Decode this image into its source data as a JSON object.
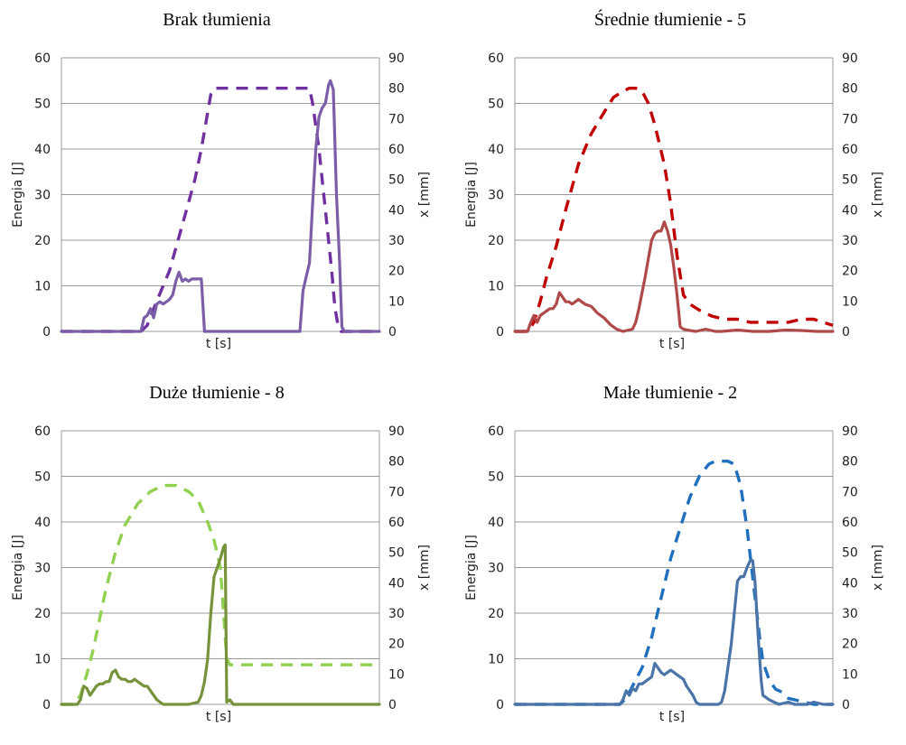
{
  "chart_data": [
    {
      "type": "line",
      "title": "Brak tłumienia",
      "xlabel": "t [s]",
      "ylabel": "Energia [J]",
      "y2label": "x [mm]",
      "ylim": [
        0,
        60
      ],
      "y2lim": [
        0,
        90
      ],
      "yticks": [
        "0",
        "10",
        "20",
        "30",
        "40",
        "50",
        "60"
      ],
      "y2ticks": [
        "0",
        "10",
        "20",
        "30",
        "40",
        "50",
        "60",
        "70",
        "80",
        "90"
      ],
      "xlim": [
        0,
        100
      ],
      "solid_color": "#7b5ea7",
      "dash_color": "#7030a0",
      "energy": [
        [
          0,
          0
        ],
        [
          25,
          0
        ],
        [
          26,
          3
        ],
        [
          27,
          3.5
        ],
        [
          28,
          5
        ],
        [
          29,
          3
        ],
        [
          30,
          6
        ],
        [
          31,
          6.5
        ],
        [
          32,
          6
        ],
        [
          33,
          6.5
        ],
        [
          34,
          7
        ],
        [
          35,
          8
        ],
        [
          36,
          11
        ],
        [
          37,
          13
        ],
        [
          38,
          11
        ],
        [
          39,
          11.5
        ],
        [
          40,
          11
        ],
        [
          41,
          11.5
        ],
        [
          42,
          11.5
        ],
        [
          43,
          11.5
        ],
        [
          44,
          11.5
        ],
        [
          45,
          0
        ],
        [
          50,
          0
        ],
        [
          60,
          0
        ],
        [
          75,
          0
        ],
        [
          76,
          9
        ],
        [
          77,
          12
        ],
        [
          78,
          15
        ],
        [
          79,
          28
        ],
        [
          80,
          40
        ],
        [
          81,
          47
        ],
        [
          82,
          49
        ],
        [
          83,
          50
        ],
        [
          84,
          54
        ],
        [
          84.6,
          55
        ],
        [
          85.5,
          53
        ],
        [
          86.5,
          30
        ],
        [
          87.5,
          15
        ],
        [
          88.2,
          1
        ],
        [
          89,
          0
        ],
        [
          100,
          0
        ]
      ],
      "position": [
        [
          0,
          0
        ],
        [
          25,
          0
        ],
        [
          26,
          1
        ],
        [
          27,
          2
        ],
        [
          28,
          5
        ],
        [
          30,
          10
        ],
        [
          34,
          20
        ],
        [
          38,
          35
        ],
        [
          42,
          50
        ],
        [
          44,
          60
        ],
        [
          46,
          72
        ],
        [
          47,
          78
        ],
        [
          48,
          80
        ],
        [
          58,
          80
        ],
        [
          78,
          80
        ],
        [
          79,
          75
        ],
        [
          81,
          60
        ],
        [
          83,
          40
        ],
        [
          85,
          20
        ],
        [
          86,
          8
        ],
        [
          87,
          2
        ],
        [
          88,
          0
        ],
        [
          100,
          0
        ]
      ]
    },
    {
      "type": "line",
      "title": "Średnie tłumienie - 5",
      "xlabel": "t [s]",
      "ylabel": "Energia [J]",
      "y2label": "x [mm]",
      "ylim": [
        0,
        60
      ],
      "y2lim": [
        0,
        90
      ],
      "yticks": [
        "0",
        "10",
        "20",
        "30",
        "40",
        "50",
        "60"
      ],
      "y2ticks": [
        "0",
        "10",
        "20",
        "30",
        "40",
        "50",
        "60",
        "70",
        "80",
        "90"
      ],
      "xlim": [
        0,
        100
      ],
      "solid_color": "#b04a4a",
      "dash_color": "#c00000",
      "energy": [
        [
          0,
          0
        ],
        [
          4,
          0
        ],
        [
          5,
          2
        ],
        [
          6,
          3.5
        ],
        [
          7,
          2
        ],
        [
          8,
          3.5
        ],
        [
          9,
          4
        ],
        [
          10,
          4.5
        ],
        [
          11,
          5
        ],
        [
          12,
          5
        ],
        [
          13,
          6
        ],
        [
          14,
          8.5
        ],
        [
          15,
          7.5
        ],
        [
          16,
          6.5
        ],
        [
          17,
          6.5
        ],
        [
          18,
          6
        ],
        [
          20,
          7
        ],
        [
          22,
          6
        ],
        [
          24,
          5.5
        ],
        [
          26,
          4
        ],
        [
          28,
          3
        ],
        [
          30,
          1.5
        ],
        [
          32,
          0.5
        ],
        [
          34,
          0
        ],
        [
          37,
          0.5
        ],
        [
          38,
          2
        ],
        [
          39,
          5
        ],
        [
          41,
          12
        ],
        [
          42,
          16
        ],
        [
          43,
          20
        ],
        [
          44,
          21.5
        ],
        [
          45,
          22
        ],
        [
          46,
          22
        ],
        [
          47,
          24
        ],
        [
          48,
          22
        ],
        [
          49,
          19
        ],
        [
          50,
          14
        ],
        [
          51,
          8
        ],
        [
          52,
          1
        ],
        [
          53,
          0.5
        ],
        [
          55,
          0.2
        ],
        [
          57,
          0
        ],
        [
          60,
          0.5
        ],
        [
          63,
          0
        ],
        [
          65,
          0
        ],
        [
          70,
          0.3
        ],
        [
          75,
          0
        ],
        [
          80,
          0
        ],
        [
          85,
          0.3
        ],
        [
          90,
          0.2
        ],
        [
          95,
          0
        ],
        [
          100,
          0
        ]
      ],
      "position": [
        [
          0,
          0
        ],
        [
          2,
          0
        ],
        [
          4,
          0
        ],
        [
          6,
          3
        ],
        [
          8,
          10
        ],
        [
          10,
          18
        ],
        [
          13,
          28
        ],
        [
          16,
          40
        ],
        [
          20,
          55
        ],
        [
          24,
          65
        ],
        [
          28,
          72
        ],
        [
          31,
          77
        ],
        [
          34,
          79
        ],
        [
          36,
          80
        ],
        [
          38,
          80
        ],
        [
          40,
          79
        ],
        [
          42,
          75
        ],
        [
          44,
          68
        ],
        [
          47,
          55
        ],
        [
          49,
          42
        ],
        [
          51,
          25
        ],
        [
          53,
          12
        ],
        [
          55,
          9
        ],
        [
          58,
          7
        ],
        [
          62,
          5
        ],
        [
          66,
          4
        ],
        [
          70,
          4
        ],
        [
          74,
          3
        ],
        [
          78,
          3
        ],
        [
          82,
          3
        ],
        [
          86,
          3
        ],
        [
          90,
          4
        ],
        [
          94,
          4
        ],
        [
          97,
          3
        ],
        [
          100,
          2
        ]
      ]
    },
    {
      "type": "line",
      "title": "Duże tłumienie - 8",
      "xlabel": "t [s]",
      "ylabel": "Energia [J]",
      "y2label": "x [mm]",
      "ylim": [
        0,
        60
      ],
      "y2lim": [
        0,
        90
      ],
      "yticks": [
        "0",
        "10",
        "20",
        "30",
        "40",
        "50",
        "60"
      ],
      "y2ticks": [
        "0",
        "10",
        "20",
        "30",
        "40",
        "50",
        "60",
        "70",
        "80",
        "90"
      ],
      "xlim": [
        0,
        100
      ],
      "solid_color": "#76933c",
      "dash_color": "#92d050",
      "energy": [
        [
          0,
          0
        ],
        [
          5,
          0
        ],
        [
          6,
          1
        ],
        [
          7,
          4
        ],
        [
          8,
          3.5
        ],
        [
          9,
          2
        ],
        [
          10,
          3
        ],
        [
          11,
          4
        ],
        [
          12,
          4.5
        ],
        [
          13,
          4.5
        ],
        [
          14,
          5
        ],
        [
          15,
          5
        ],
        [
          16,
          7
        ],
        [
          17,
          7.5
        ],
        [
          18,
          6
        ],
        [
          19,
          5.5
        ],
        [
          20,
          5.5
        ],
        [
          21,
          5
        ],
        [
          22,
          5
        ],
        [
          23,
          5.5
        ],
        [
          24,
          5
        ],
        [
          25,
          4.5
        ],
        [
          26,
          4
        ],
        [
          27,
          4
        ],
        [
          28,
          3
        ],
        [
          29,
          2
        ],
        [
          30,
          1
        ],
        [
          31,
          0.5
        ],
        [
          32,
          0
        ],
        [
          40,
          0
        ],
        [
          43,
          0.5
        ],
        [
          44,
          2
        ],
        [
          45,
          5
        ],
        [
          46,
          10
        ],
        [
          47,
          20
        ],
        [
          48,
          28
        ],
        [
          49,
          30
        ],
        [
          50,
          32
        ],
        [
          51,
          34.5
        ],
        [
          51.5,
          35
        ],
        [
          52,
          0.5
        ],
        [
          53,
          1
        ],
        [
          54,
          0
        ],
        [
          60,
          0
        ],
        [
          70,
          0
        ],
        [
          80,
          0
        ],
        [
          90,
          0
        ],
        [
          100,
          0
        ]
      ],
      "position": [
        [
          0,
          0
        ],
        [
          4,
          0
        ],
        [
          6,
          3
        ],
        [
          8,
          10
        ],
        [
          10,
          18
        ],
        [
          12,
          28
        ],
        [
          14,
          38
        ],
        [
          17,
          50
        ],
        [
          20,
          59
        ],
        [
          24,
          66
        ],
        [
          28,
          70
        ],
        [
          32,
          72
        ],
        [
          36,
          72
        ],
        [
          40,
          70
        ],
        [
          43,
          67
        ],
        [
          46,
          60
        ],
        [
          48,
          54
        ],
        [
          50,
          45
        ],
        [
          51,
          30
        ],
        [
          52,
          15
        ],
        [
          53,
          13
        ],
        [
          56,
          13
        ],
        [
          60,
          13
        ],
        [
          66,
          13
        ],
        [
          72,
          13
        ],
        [
          78,
          13
        ],
        [
          84,
          13
        ],
        [
          90,
          13
        ],
        [
          96,
          13
        ],
        [
          100,
          13
        ]
      ]
    },
    {
      "type": "line",
      "title": "Małe tłumienie - 2",
      "xlabel": "t [s]",
      "ylabel": "Energia [J]",
      "y2label": "x [mm]",
      "ylim": [
        0,
        60
      ],
      "y2lim": [
        0,
        90
      ],
      "yticks": [
        "0",
        "10",
        "20",
        "30",
        "40",
        "50",
        "60"
      ],
      "y2ticks": [
        "0",
        "10",
        "20",
        "30",
        "40",
        "50",
        "60",
        "70",
        "80",
        "90"
      ],
      "xlim": [
        0,
        100
      ],
      "solid_color": "#4a73a8",
      "dash_color": "#1f6fbf",
      "energy": [
        [
          0,
          0
        ],
        [
          10,
          0
        ],
        [
          20,
          0
        ],
        [
          33,
          0
        ],
        [
          34,
          1
        ],
        [
          35,
          3
        ],
        [
          36,
          2
        ],
        [
          37,
          3.5
        ],
        [
          38,
          3
        ],
        [
          39,
          4.5
        ],
        [
          40,
          4.5
        ],
        [
          41,
          5
        ],
        [
          42,
          5.5
        ],
        [
          43,
          6
        ],
        [
          44,
          9
        ],
        [
          45,
          8
        ],
        [
          46,
          7
        ],
        [
          47,
          6.5
        ],
        [
          48,
          7
        ],
        [
          49,
          7.5
        ],
        [
          50,
          7
        ],
        [
          51,
          6.5
        ],
        [
          52,
          6
        ],
        [
          53,
          5.5
        ],
        [
          54,
          4
        ],
        [
          55,
          3
        ],
        [
          56,
          2
        ],
        [
          57,
          0.5
        ],
        [
          58,
          0
        ],
        [
          64,
          0
        ],
        [
          65,
          0.5
        ],
        [
          66,
          3
        ],
        [
          67,
          8
        ],
        [
          68,
          13
        ],
        [
          69,
          20
        ],
        [
          70,
          27
        ],
        [
          71,
          28
        ],
        [
          72,
          28
        ],
        [
          73,
          30
        ],
        [
          74,
          31.5
        ],
        [
          74.8,
          31.5
        ],
        [
          75.5,
          27
        ],
        [
          76.5,
          15
        ],
        [
          77.5,
          5
        ],
        [
          78,
          2
        ],
        [
          80,
          1
        ],
        [
          83,
          0
        ],
        [
          86,
          0.5
        ],
        [
          88,
          0
        ],
        [
          92,
          0
        ],
        [
          94,
          0.5
        ],
        [
          97,
          0
        ],
        [
          100,
          0
        ]
      ],
      "position": [
        [
          0,
          0
        ],
        [
          30,
          0
        ],
        [
          33,
          0
        ],
        [
          35,
          2
        ],
        [
          37,
          6
        ],
        [
          40,
          12
        ],
        [
          43,
          22
        ],
        [
          46,
          35
        ],
        [
          49,
          48
        ],
        [
          52,
          58
        ],
        [
          55,
          68
        ],
        [
          58,
          75
        ],
        [
          61,
          79
        ],
        [
          63,
          80
        ],
        [
          67,
          80
        ],
        [
          69,
          79
        ],
        [
          71,
          72
        ],
        [
          73,
          58
        ],
        [
          75,
          40
        ],
        [
          77,
          22
        ],
        [
          78,
          14
        ],
        [
          80,
          8
        ],
        [
          82,
          5
        ],
        [
          84,
          4
        ],
        [
          86,
          2
        ],
        [
          90,
          1
        ],
        [
          94,
          0
        ],
        [
          100,
          0
        ]
      ]
    }
  ]
}
